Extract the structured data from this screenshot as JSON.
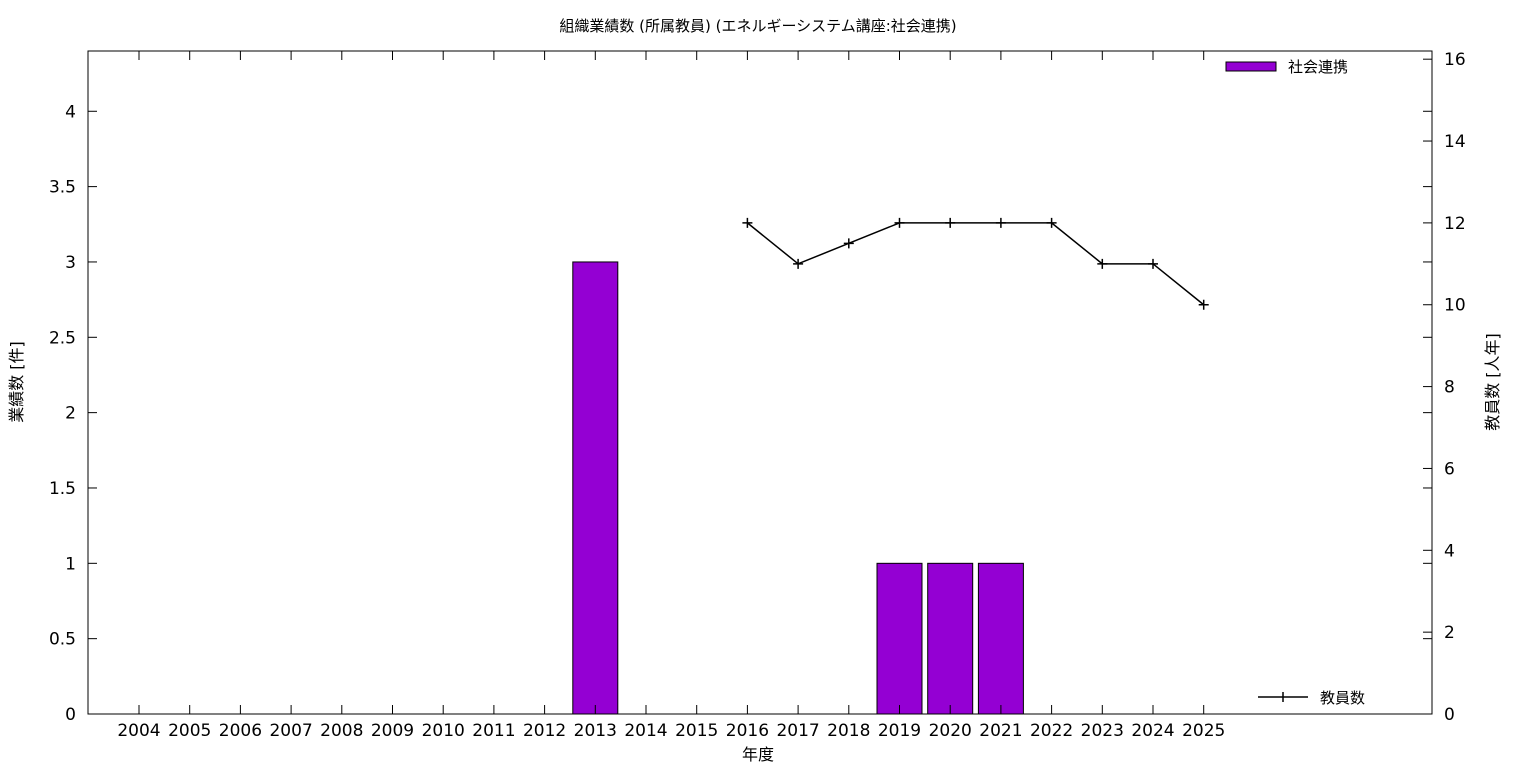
{
  "chart_data": {
    "type": "bar",
    "title": "組織業績数 (所属教員) (エネルギーシステム講座:社会連携)",
    "xlabel": "年度",
    "ylabel": "業績数 [件]",
    "y2label": "教員数 [人年]",
    "categories": [
      "2004",
      "2005",
      "2006",
      "2007",
      "2008",
      "2009",
      "2010",
      "2011",
      "2012",
      "2013",
      "2014",
      "2015",
      "2016",
      "2017",
      "2018",
      "2019",
      "2020",
      "2021",
      "2022",
      "2023",
      "2024",
      "2025"
    ],
    "ylim": [
      0,
      4.4
    ],
    "y2lim": [
      0,
      16.2
    ],
    "yticks": [
      "0",
      "0.5",
      "1",
      "1.5",
      "2",
      "2.5",
      "3",
      "3.5",
      "4"
    ],
    "y2ticks": [
      "0",
      "2",
      "4",
      "6",
      "8",
      "10",
      "12",
      "14",
      "16"
    ],
    "grid": false,
    "series": [
      {
        "name": "社会連携",
        "type": "bar",
        "axis": "left",
        "color": "#9400d3",
        "values": [
          0,
          0,
          0,
          0,
          0,
          0,
          0,
          0,
          0,
          3,
          0,
          0,
          0,
          0,
          0,
          1,
          1,
          1,
          0,
          0,
          0,
          0
        ]
      },
      {
        "name": "教員数",
        "type": "line",
        "axis": "right",
        "color": "#000000",
        "values": [
          null,
          null,
          null,
          null,
          null,
          null,
          null,
          null,
          null,
          null,
          null,
          null,
          12,
          11,
          11.5,
          12,
          12,
          12,
          12,
          11,
          11,
          10
        ]
      }
    ],
    "legend": [
      {
        "label": "社会連携",
        "position": "top-right"
      },
      {
        "label": "教員数",
        "position": "bottom-right"
      }
    ]
  }
}
